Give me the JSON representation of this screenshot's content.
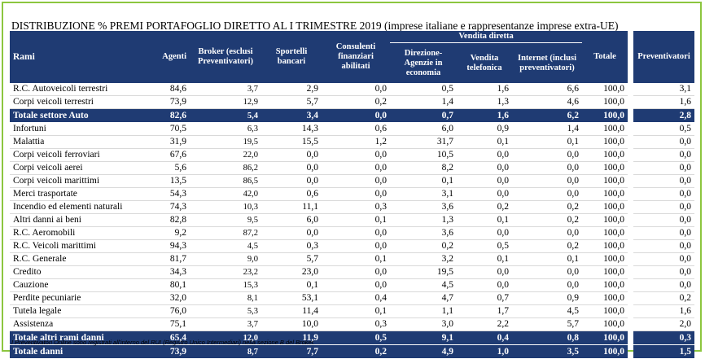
{
  "title": "DISTRIBUZIONE % PREMI PORTAFOGLIO DIRETTO AL I TRIMESTRE 2019 (imprese italiane e rappresentanze imprese extra-UE)",
  "header": {
    "vendita_diretta": "Vendita diretta",
    "rami": "Rami",
    "agenti": "Agenti",
    "broker": "Broker (esclusi Preventivatori)",
    "sportelli": "Sportelli bancari",
    "consulenti": "Consulenti finanziari abilitati",
    "direzione": "Direzione-Agenzie in economia",
    "vendita_tel": "Vendita telefonica",
    "internet": "Internet (inclusi preventivatori)",
    "totale": "Totale",
    "preventivatori": "Preventivatori"
  },
  "rows": [
    {
      "type": "body",
      "name": "R.C. Autoveicoli terrestri",
      "agenti": "84,6",
      "broker": "3,7",
      "sportelli": "2,9",
      "consulenti": "0,0",
      "direzione": "0,5",
      "tel": "1,6",
      "internet": "6,6",
      "totale": "100,0",
      "prev": "3,1"
    },
    {
      "type": "body",
      "name": "Corpi veicoli terrestri",
      "agenti": "73,9",
      "broker": "12,9",
      "sportelli": "5,7",
      "consulenti": "0,2",
      "direzione": "1,4",
      "tel": "1,3",
      "internet": "4,6",
      "totale": "100,0",
      "prev": "1,6"
    },
    {
      "type": "tot",
      "name": "Totale settore Auto",
      "agenti": "82,6",
      "broker": "5,4",
      "sportelli": "3,4",
      "consulenti": "0,0",
      "direzione": "0,7",
      "tel": "1,6",
      "internet": "6,2",
      "totale": "100,0",
      "prev": "2,8"
    },
    {
      "type": "body",
      "name": "Infortuni",
      "agenti": "70,5",
      "broker": "6,3",
      "sportelli": "14,3",
      "consulenti": "0,6",
      "direzione": "6,0",
      "tel": "0,9",
      "internet": "1,4",
      "totale": "100,0",
      "prev": "0,5"
    },
    {
      "type": "body",
      "name": "Malattia",
      "agenti": "31,9",
      "broker": "19,5",
      "sportelli": "15,5",
      "consulenti": "1,2",
      "direzione": "31,7",
      "tel": "0,1",
      "internet": "0,1",
      "totale": "100,0",
      "prev": "0,0"
    },
    {
      "type": "body",
      "name": "Corpi veicoli ferroviari",
      "agenti": "67,6",
      "broker": "22,0",
      "sportelli": "0,0",
      "consulenti": "0,0",
      "direzione": "10,5",
      "tel": "0,0",
      "internet": "0,0",
      "totale": "100,0",
      "prev": "0,0"
    },
    {
      "type": "body",
      "name": "Corpi veicoli aerei",
      "agenti": "5,6",
      "broker": "86,2",
      "sportelli": "0,0",
      "consulenti": "0,0",
      "direzione": "8,2",
      "tel": "0,0",
      "internet": "0,0",
      "totale": "100,0",
      "prev": "0,0"
    },
    {
      "type": "body",
      "name": "Corpi veicoli marittimi",
      "agenti": "13,5",
      "broker": "86,5",
      "sportelli": "0,0",
      "consulenti": "0,0",
      "direzione": "0,1",
      "tel": "0,0",
      "internet": "0,0",
      "totale": "100,0",
      "prev": "0,0"
    },
    {
      "type": "body",
      "name": "Merci trasportate",
      "agenti": "54,3",
      "broker": "42,0",
      "sportelli": "0,6",
      "consulenti": "0,0",
      "direzione": "3,1",
      "tel": "0,0",
      "internet": "0,0",
      "totale": "100,0",
      "prev": "0,0"
    },
    {
      "type": "body",
      "name": "Incendio ed elementi naturali",
      "agenti": "74,3",
      "broker": "10,3",
      "sportelli": "11,1",
      "consulenti": "0,3",
      "direzione": "3,6",
      "tel": "0,2",
      "internet": "0,2",
      "totale": "100,0",
      "prev": "0,0"
    },
    {
      "type": "body",
      "name": "Altri danni ai beni",
      "agenti": "82,8",
      "broker": "9,5",
      "sportelli": "6,0",
      "consulenti": "0,1",
      "direzione": "1,3",
      "tel": "0,1",
      "internet": "0,2",
      "totale": "100,0",
      "prev": "0,0"
    },
    {
      "type": "body",
      "name": "R.C. Aeromobili",
      "agenti": "9,2",
      "broker": "87,2",
      "sportelli": "0,0",
      "consulenti": "0,0",
      "direzione": "3,6",
      "tel": "0,0",
      "internet": "0,0",
      "totale": "100,0",
      "prev": "0,0"
    },
    {
      "type": "body",
      "name": "R.C. Veicoli marittimi",
      "agenti": "94,3",
      "broker": "4,5",
      "sportelli": "0,3",
      "consulenti": "0,0",
      "direzione": "0,2",
      "tel": "0,5",
      "internet": "0,2",
      "totale": "100,0",
      "prev": "0,0"
    },
    {
      "type": "body",
      "name": "R.C. Generale",
      "agenti": "81,7",
      "broker": "9,0",
      "sportelli": "5,7",
      "consulenti": "0,1",
      "direzione": "3,2",
      "tel": "0,1",
      "internet": "0,1",
      "totale": "100,0",
      "prev": "0,0"
    },
    {
      "type": "body",
      "name": "Credito",
      "agenti": "34,3",
      "broker": "23,2",
      "sportelli": "23,0",
      "consulenti": "0,0",
      "direzione": "19,5",
      "tel": "0,0",
      "internet": "0,0",
      "totale": "100,0",
      "prev": "0,0"
    },
    {
      "type": "body",
      "name": "Cauzione",
      "agenti": "80,1",
      "broker": "15,3",
      "sportelli": "0,1",
      "consulenti": "0,0",
      "direzione": "4,5",
      "tel": "0,0",
      "internet": "0,0",
      "totale": "100,0",
      "prev": "0,0"
    },
    {
      "type": "body",
      "name": "Perdite pecuniarie",
      "agenti": "32,0",
      "broker": "8,1",
      "sportelli": "53,1",
      "consulenti": "0,4",
      "direzione": "4,7",
      "tel": "0,7",
      "internet": "0,9",
      "totale": "100,0",
      "prev": "0,2"
    },
    {
      "type": "body",
      "name": "Tutela legale",
      "agenti": "76,0",
      "broker": "5,3",
      "sportelli": "11,4",
      "consulenti": "0,1",
      "direzione": "1,1",
      "tel": "1,7",
      "internet": "4,5",
      "totale": "100,0",
      "prev": "1,6"
    },
    {
      "type": "body",
      "name": "Assistenza",
      "agenti": "75,1",
      "broker": "3,7",
      "sportelli": "10,0",
      "consulenti": "0,3",
      "direzione": "3,0",
      "tel": "2,2",
      "internet": "5,7",
      "totale": "100,0",
      "prev": "2,0"
    },
    {
      "type": "tot",
      "name": "Totale altri rami danni",
      "agenti": "65,4",
      "broker": "12,0",
      "sportelli": "11,9",
      "consulenti": "0,5",
      "direzione": "9,1",
      "tel": "0,4",
      "internet": "0,8",
      "totale": "100,0",
      "prev": "0,3"
    },
    {
      "type": "tot",
      "name": "Totale danni",
      "agenti": "73,9",
      "broker": "8,7",
      "sportelli": "7,7",
      "consulenti": "0,2",
      "direzione": "4,9",
      "tel": "1,0",
      "internet": "3,5",
      "totale": "100,0",
      "prev": "1,5"
    }
  ],
  "footnote": "I Preventivatori Online sono registrati all'interno del RUI (Registro Unico Intermediari) nella sezione B del Broker.",
  "colors": {
    "header_bg": "#1f3b73",
    "frame": "#8cc63f"
  }
}
